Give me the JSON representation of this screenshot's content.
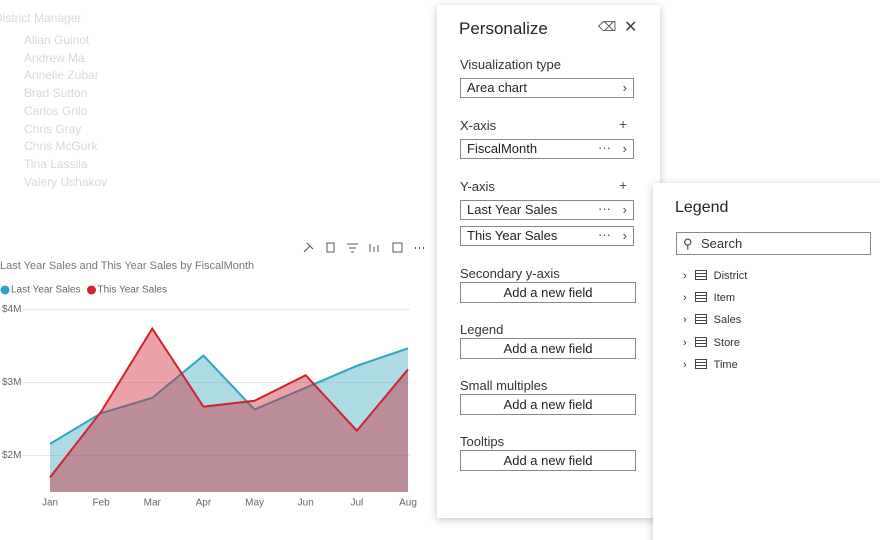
{
  "background": {
    "title": "District Manager",
    "names": [
      "Allan Guinot",
      "Andrew Ma",
      "Annelie Zubar",
      "Brad Sutton",
      "Carlos Grilo",
      "Chris Gray",
      "Chris McGurk",
      "Tina Lassila",
      "Valery Ushakov"
    ]
  },
  "chart_data": {
    "type": "area",
    "title": "Last Year Sales and This Year Sales by FiscalMonth",
    "categories": [
      "Jan",
      "Feb",
      "Mar",
      "Apr",
      "May",
      "Jun",
      "Jul",
      "Aug"
    ],
    "series": [
      {
        "name": "Last Year Sales",
        "color": "#2fa5bd",
        "values": [
          2.16,
          2.58,
          2.79,
          3.37,
          2.63,
          2.93,
          3.23,
          3.47
        ]
      },
      {
        "name": "This Year Sales",
        "color": "#d0222f",
        "values": [
          1.7,
          2.6,
          3.74,
          2.67,
          2.75,
          3.1,
          2.34,
          3.18
        ]
      }
    ],
    "ylim": [
      1.5,
      4.2
    ],
    "yticks": [
      {
        "value": 2,
        "label": "$2M"
      },
      {
        "value": 3,
        "label": "$3M"
      },
      {
        "value": 4,
        "label": "$4M"
      }
    ],
    "grid": true
  },
  "personalize": {
    "title": "Personalize",
    "sections": [
      {
        "label": "Visualization type",
        "fields": [
          "Area chart"
        ]
      },
      {
        "label": "X-axis",
        "fields": [
          "FiscalMonth"
        ]
      },
      {
        "label": "Y-axis",
        "fields": [
          "Last Year Sales",
          "This Year Sales"
        ]
      },
      {
        "label": "Secondary y-axis",
        "button": "Add a new field"
      },
      {
        "label": "Legend",
        "button": "Add a new field"
      },
      {
        "label": "Small multiples",
        "button": "Add a new field"
      },
      {
        "label": "Tooltips",
        "button": "Add a new field"
      }
    ]
  },
  "legend_pane": {
    "title": "Legend",
    "search": "Search",
    "tables": [
      "District",
      "Item",
      "Sales",
      "Store",
      "Time"
    ]
  }
}
